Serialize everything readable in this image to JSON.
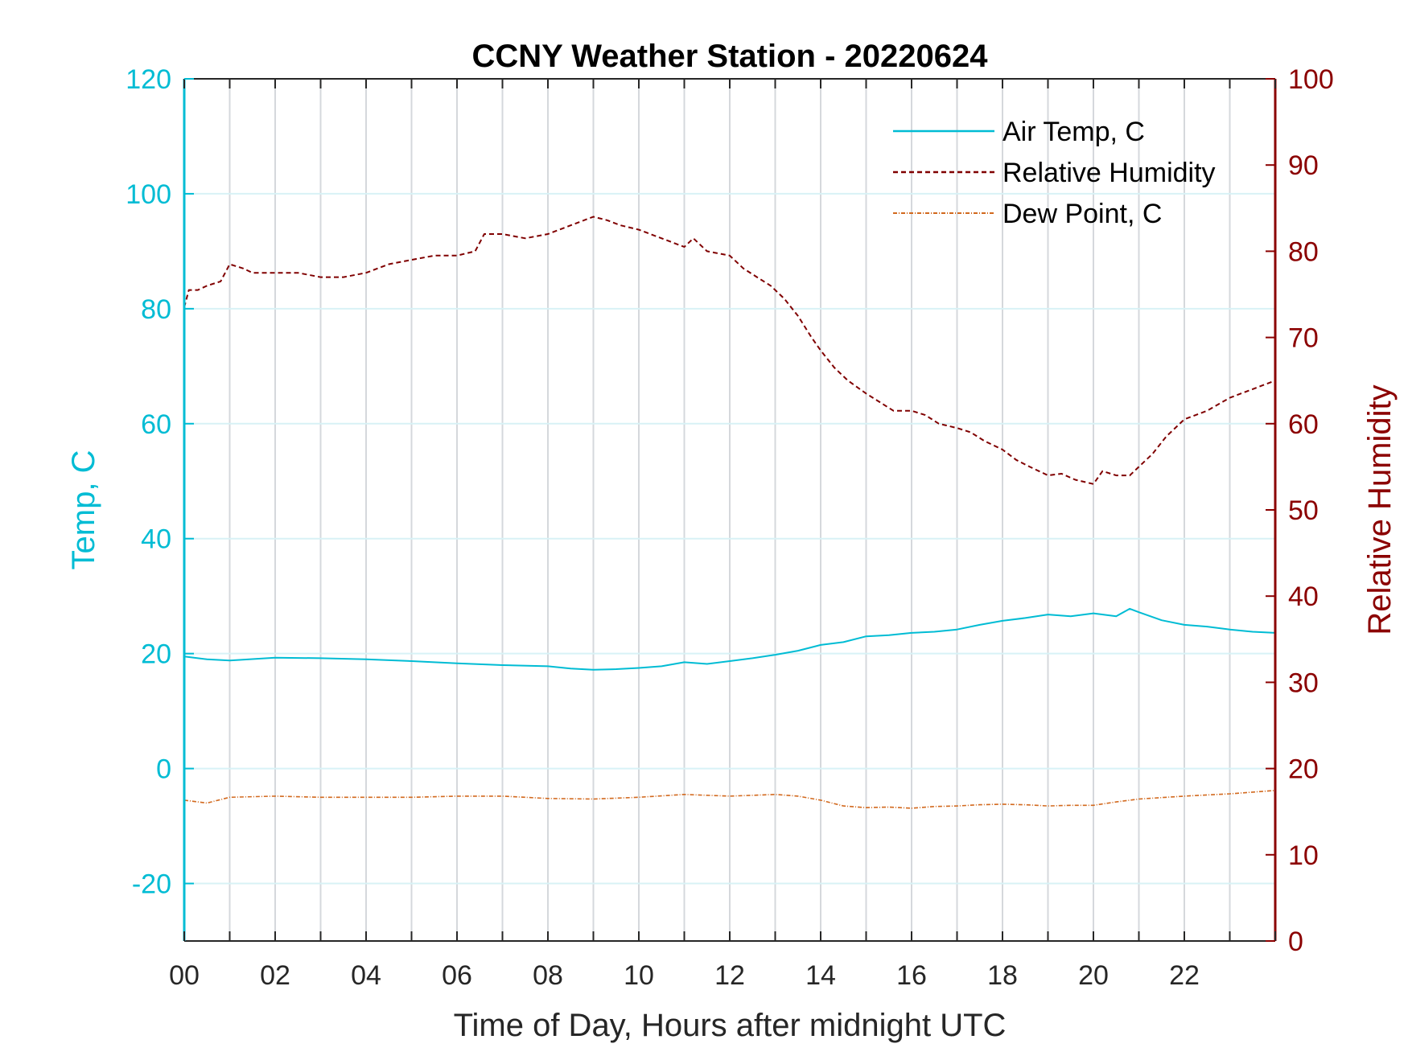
{
  "chart_data": {
    "type": "line",
    "title": "CCNY Weather Station - 20220624",
    "xlabel": "Time of Day, Hours after midnight UTC",
    "ylabel_left": "Temp, C",
    "ylabel_right": "Relative Humidity",
    "xlim": [
      0,
      24
    ],
    "ylim_left": [
      -30,
      120
    ],
    "ylim_right": [
      0,
      100
    ],
    "x_ticks": [
      0,
      2,
      4,
      6,
      8,
      10,
      12,
      14,
      16,
      18,
      20,
      22
    ],
    "x_tick_labels": [
      "00",
      "02",
      "04",
      "06",
      "08",
      "10",
      "12",
      "14",
      "16",
      "18",
      "20",
      "22"
    ],
    "left_ticks": [
      -20,
      0,
      20,
      40,
      60,
      80,
      100,
      120
    ],
    "left_tick_labels": [
      "-20",
      "0",
      "20",
      "40",
      "60",
      "80",
      "100",
      "120"
    ],
    "right_ticks": [
      0,
      10,
      20,
      30,
      40,
      50,
      60,
      70,
      80,
      90,
      100
    ],
    "right_tick_labels": [
      "0",
      "10",
      "20",
      "30",
      "40",
      "50",
      "60",
      "70",
      "80",
      "90",
      "100"
    ],
    "grid": true,
    "legend_position": "top-right",
    "colors": {
      "air_temp": "#00BCD4",
      "relative_humidity": "#800000",
      "dew_point": "#D2691E",
      "left_axis": "#00BCD4",
      "right_axis": "#8B0000",
      "grid_vertical": "#D5D8DC",
      "grid_horizontal": "#D8F2F6"
    },
    "series": [
      {
        "name": "Air Temp, C",
        "axis": "left",
        "style": "solid",
        "x": [
          0,
          0.5,
          1,
          2,
          3,
          4,
          5,
          6,
          7,
          8,
          8.5,
          9,
          9.5,
          10,
          10.5,
          11,
          11.5,
          12,
          12.5,
          13,
          13.5,
          14,
          14.5,
          15,
          15.5,
          16,
          16.5,
          17,
          17.5,
          18,
          18.5,
          19,
          19.5,
          20,
          20.5,
          20.8,
          21,
          21.5,
          22,
          22.5,
          23,
          23.5,
          24
        ],
        "y": [
          19.5,
          19,
          18.8,
          19.3,
          19.2,
          19,
          18.7,
          18.3,
          18,
          17.8,
          17.4,
          17.2,
          17.3,
          17.5,
          17.8,
          18.5,
          18.2,
          18.7,
          19.2,
          19.8,
          20.5,
          21.5,
          22,
          23,
          23.2,
          23.6,
          23.8,
          24.2,
          25,
          25.7,
          26.2,
          26.8,
          26.5,
          27,
          26.5,
          27.8,
          27.2,
          25.8,
          25,
          24.7,
          24.2,
          23.8,
          23.6
        ]
      },
      {
        "name": "Relative Humidity",
        "axis": "right",
        "style": "dashed",
        "x": [
          0,
          0.1,
          0.3,
          0.5,
          0.8,
          1,
          1.3,
          1.5,
          2,
          2.5,
          3,
          3.5,
          4,
          4.5,
          5,
          5.5,
          6,
          6.4,
          6.6,
          7,
          7.5,
          8,
          8.5,
          9,
          9.3,
          9.6,
          10,
          10.5,
          11,
          11.2,
          11.5,
          12,
          12.3,
          12.6,
          12.9,
          13.2,
          13.5,
          13.8,
          14,
          14.3,
          14.6,
          15,
          15.3,
          15.6,
          16,
          16.3,
          16.6,
          17,
          17.3,
          17.6,
          18,
          18.3,
          18.6,
          19,
          19.3,
          19.6,
          20,
          20.2,
          20.5,
          20.8,
          21,
          21.3,
          21.6,
          22,
          22.5,
          23,
          23.5,
          24
        ],
        "y": [
          73.5,
          75.5,
          75.5,
          76,
          76.5,
          78.5,
          78,
          77.5,
          77.5,
          77.5,
          77,
          77,
          77.5,
          78.5,
          79,
          79.5,
          79.5,
          80,
          82,
          82,
          81.5,
          82,
          83,
          84,
          83.6,
          83,
          82.5,
          81.5,
          80.5,
          81.5,
          80,
          79.5,
          78,
          77,
          76,
          74.5,
          72.5,
          70,
          68.5,
          66.5,
          65,
          63.5,
          62.5,
          61.5,
          61.5,
          61,
          60,
          59.5,
          59,
          58,
          57,
          55.8,
          55,
          54,
          54.2,
          53.5,
          53,
          54.5,
          54,
          54,
          55,
          56.5,
          58.5,
          60.5,
          61.5,
          63,
          64,
          65
        ]
      },
      {
        "name": "Dew Point, C",
        "axis": "left",
        "style": "dash-dot",
        "x": [
          0,
          0.5,
          1,
          2,
          3,
          4,
          5,
          6,
          7,
          8,
          9,
          10,
          11,
          12,
          13,
          13.5,
          14,
          14.5,
          15,
          15.5,
          16,
          16.5,
          17,
          17.5,
          18,
          18.5,
          19,
          19.5,
          20,
          20.5,
          21,
          22,
          23,
          24
        ],
        "y": [
          -5.5,
          -6,
          -5,
          -4.8,
          -5,
          -5,
          -5,
          -4.8,
          -4.8,
          -5.2,
          -5.3,
          -5,
          -4.5,
          -4.8,
          -4.5,
          -4.8,
          -5.5,
          -6.5,
          -6.8,
          -6.7,
          -6.9,
          -6.6,
          -6.5,
          -6.3,
          -6.2,
          -6.3,
          -6.5,
          -6.4,
          -6.4,
          -5.8,
          -5.3,
          -4.8,
          -4.4,
          -3.8
        ]
      }
    ]
  }
}
